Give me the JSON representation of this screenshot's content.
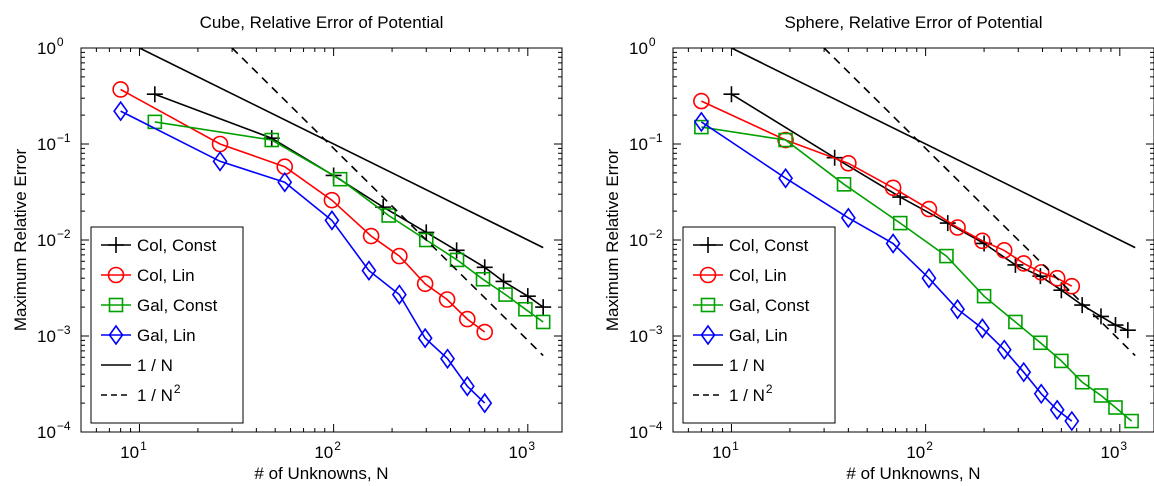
{
  "chart_data": [
    {
      "type": "line",
      "title": "Cube, Relative Error of Potential",
      "xlabel": "# of Unknowns, N",
      "ylabel": "Maximum Relative Error",
      "xscale": "log",
      "yscale": "log",
      "xlim": [
        5,
        1500
      ],
      "ylim": [
        0.0001,
        1
      ],
      "x_ticks": [
        {
          "v": 10,
          "exp": "1"
        },
        {
          "v": 100,
          "exp": "2"
        },
        {
          "v": 1000,
          "exp": "3"
        }
      ],
      "y_ticks": [
        {
          "v": 0.0001,
          "exp": "−4"
        },
        {
          "v": 0.001,
          "exp": "−3"
        },
        {
          "v": 0.01,
          "exp": "−2"
        },
        {
          "v": 0.1,
          "exp": "−1"
        },
        {
          "v": 1,
          "exp": "0"
        }
      ],
      "legend": {
        "position": "lower-left",
        "entries": [
          "Col, Const",
          "Col, Lin",
          "Gal, Const",
          "Gal, Lin",
          "1 / N",
          "1 / N"
        ],
        "superscript": [
          "",
          "",
          "",
          "",
          "",
          "2"
        ]
      },
      "series": [
        {
          "name": "Col, Const",
          "color": "#000000",
          "marker": "plus",
          "x": [
            12,
            48,
            100,
            180,
            300,
            430,
            600,
            750,
            1000,
            1200
          ],
          "y": [
            0.33,
            0.115,
            0.047,
            0.022,
            0.012,
            0.0078,
            0.0052,
            0.0037,
            0.0026,
            0.002
          ]
        },
        {
          "name": "Col, Lin",
          "color": "#ff0000",
          "marker": "circle",
          "x": [
            8,
            26,
            56,
            98,
            156,
            218,
            296,
            384,
            488,
            600
          ],
          "y": [
            0.37,
            0.1,
            0.058,
            0.026,
            0.011,
            0.0068,
            0.0035,
            0.0024,
            0.0015,
            0.0011
          ]
        },
        {
          "name": "Gal, Const",
          "color": "#00a000",
          "marker": "square",
          "x": [
            12,
            48,
            108,
            192,
            300,
            432,
            588,
            768,
            972,
            1200
          ],
          "y": [
            0.17,
            0.11,
            0.043,
            0.018,
            0.01,
            0.0062,
            0.0039,
            0.0027,
            0.0019,
            0.0014
          ]
        },
        {
          "name": "Gal, Lin",
          "color": "#0000ff",
          "marker": "diamond",
          "x": [
            8,
            26,
            56,
            98,
            152,
            218,
            296,
            386,
            488,
            600
          ],
          "y": [
            0.22,
            0.066,
            0.04,
            0.016,
            0.0048,
            0.0027,
            0.00095,
            0.00058,
            0.0003,
            0.0002
          ]
        },
        {
          "name": "1 / N",
          "color": "#000000",
          "dash": "solid",
          "x": [
            10,
            1200
          ],
          "y": [
            1,
            0.00833
          ]
        },
        {
          "name": "1 / N²",
          "color": "#000000",
          "dash": "dashed",
          "x": [
            30,
            1200
          ],
          "y": [
            1,
            0.000625
          ]
        }
      ]
    },
    {
      "type": "line",
      "title": "Sphere, Relative Error of Potential",
      "xlabel": "# of Unknowns, N",
      "ylabel": "Maximum Relative Error",
      "xscale": "log",
      "yscale": "log",
      "xlim": [
        5,
        1500
      ],
      "ylim": [
        0.0001,
        1
      ],
      "x_ticks": [
        {
          "v": 10,
          "exp": "1"
        },
        {
          "v": 100,
          "exp": "2"
        },
        {
          "v": 1000,
          "exp": "3"
        }
      ],
      "y_ticks": [
        {
          "v": 0.0001,
          "exp": "−4"
        },
        {
          "v": 0.001,
          "exp": "−3"
        },
        {
          "v": 0.01,
          "exp": "−2"
        },
        {
          "v": 0.1,
          "exp": "−1"
        },
        {
          "v": 1,
          "exp": "0"
        }
      ],
      "legend": {
        "position": "lower-left",
        "entries": [
          "Col, Const",
          "Col, Lin",
          "Gal, Const",
          "Gal, Lin",
          "1 / N",
          "1 / N"
        ],
        "superscript": [
          "",
          "",
          "",
          "",
          "",
          "2"
        ]
      },
      "series": [
        {
          "name": "Col, Const",
          "color": "#000000",
          "marker": "plus",
          "x": [
            10,
            34,
            74,
            130,
            200,
            290,
            390,
            500,
            640,
            800,
            950,
            1100
          ],
          "y": [
            0.33,
            0.072,
            0.028,
            0.015,
            0.0092,
            0.0055,
            0.0042,
            0.003,
            0.0021,
            0.0016,
            0.0013,
            0.00115
          ]
        },
        {
          "name": "Col, Lin",
          "color": "#ff0000",
          "marker": "circle",
          "x": [
            7,
            19,
            40,
            68,
            104,
            146,
            196,
            254,
            320,
            394,
            476,
            566
          ],
          "y": [
            0.28,
            0.11,
            0.063,
            0.035,
            0.021,
            0.0135,
            0.0098,
            0.0078,
            0.0057,
            0.0046,
            0.004,
            0.0033
          ]
        },
        {
          "name": "Gal, Const",
          "color": "#00a000",
          "marker": "square",
          "x": [
            7,
            19,
            38,
            74,
            128,
            200,
            290,
            390,
            500,
            640,
            800,
            950,
            1150
          ],
          "y": [
            0.15,
            0.11,
            0.038,
            0.015,
            0.0068,
            0.0026,
            0.0014,
            0.00085,
            0.00055,
            0.00033,
            0.00024,
            0.00018,
            0.00013
          ]
        },
        {
          "name": "Gal, Lin",
          "color": "#0000ff",
          "marker": "diamond",
          "x": [
            7,
            19,
            40,
            68,
            104,
            146,
            196,
            254,
            320,
            394,
            476,
            566
          ],
          "y": [
            0.17,
            0.044,
            0.017,
            0.0092,
            0.004,
            0.0019,
            0.0012,
            0.00072,
            0.00042,
            0.00025,
            0.00017,
            0.00013
          ]
        },
        {
          "name": "1 / N",
          "color": "#000000",
          "dash": "solid",
          "x": [
            10,
            1200
          ],
          "y": [
            1,
            0.00833
          ]
        },
        {
          "name": "1 / N²",
          "color": "#000000",
          "dash": "dashed",
          "x": [
            30,
            1200
          ],
          "y": [
            1,
            0.000625
          ]
        }
      ]
    }
  ]
}
